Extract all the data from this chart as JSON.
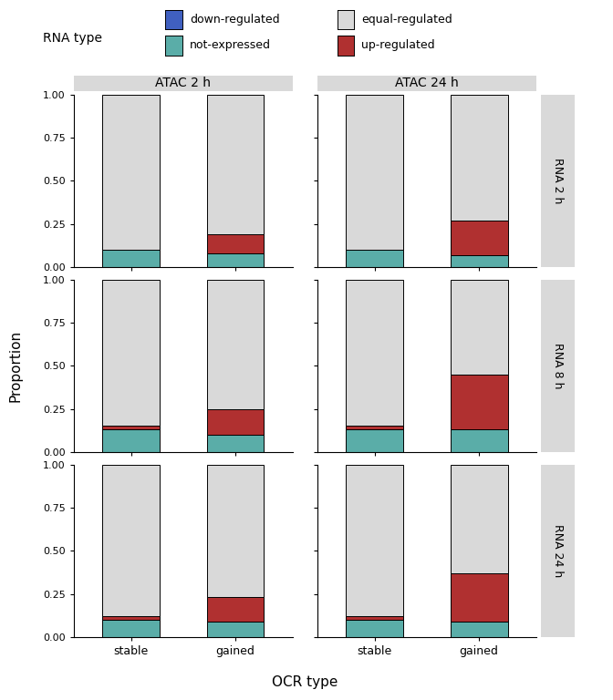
{
  "categories": [
    "stable",
    "gained"
  ],
  "col_labels": [
    "ATAC 2 h",
    "ATAC 24 h"
  ],
  "row_labels": [
    "RNA 2 h",
    "RNA 8 h",
    "RNA 24 h"
  ],
  "colors": {
    "not_expressed": "#5aada8",
    "up_regulated": "#b03030",
    "equal_regulated": "#d9d9d9",
    "down_regulated": "#4060c0"
  },
  "data": {
    "ATAC 2 h": {
      "RNA 2 h": {
        "stable": {
          "not_expressed": 0.1,
          "up_regulated": 0.0,
          "equal_regulated": 0.9,
          "down_regulated": 0.0
        },
        "gained": {
          "not_expressed": 0.08,
          "up_regulated": 0.11,
          "equal_regulated": 0.81,
          "down_regulated": 0.0
        }
      },
      "RNA 8 h": {
        "stable": {
          "not_expressed": 0.13,
          "up_regulated": 0.02,
          "equal_regulated": 0.85,
          "down_regulated": 0.0
        },
        "gained": {
          "not_expressed": 0.1,
          "up_regulated": 0.15,
          "equal_regulated": 0.75,
          "down_regulated": 0.0
        }
      },
      "RNA 24 h": {
        "stable": {
          "not_expressed": 0.1,
          "up_regulated": 0.02,
          "equal_regulated": 0.88,
          "down_regulated": 0.0
        },
        "gained": {
          "not_expressed": 0.09,
          "up_regulated": 0.14,
          "equal_regulated": 0.77,
          "down_regulated": 0.0
        }
      }
    },
    "ATAC 24 h": {
      "RNA 2 h": {
        "stable": {
          "not_expressed": 0.1,
          "up_regulated": 0.0,
          "equal_regulated": 0.9,
          "down_regulated": 0.0
        },
        "gained": {
          "not_expressed": 0.07,
          "up_regulated": 0.2,
          "equal_regulated": 0.73,
          "down_regulated": 0.0
        }
      },
      "RNA 8 h": {
        "stable": {
          "not_expressed": 0.13,
          "up_regulated": 0.02,
          "equal_regulated": 0.85,
          "down_regulated": 0.0
        },
        "gained": {
          "not_expressed": 0.13,
          "up_regulated": 0.32,
          "equal_regulated": 0.55,
          "down_regulated": 0.0
        }
      },
      "RNA 24 h": {
        "stable": {
          "not_expressed": 0.1,
          "up_regulated": 0.02,
          "equal_regulated": 0.88,
          "down_regulated": 0.0
        },
        "gained": {
          "not_expressed": 0.09,
          "up_regulated": 0.28,
          "equal_regulated": 0.63,
          "down_regulated": 0.0
        }
      }
    }
  },
  "stack_order": [
    "not_expressed",
    "up_regulated",
    "equal_regulated",
    "down_regulated"
  ],
  "legend_items": [
    {
      "label": "down-regulated",
      "color": "#4060c0"
    },
    {
      "label": "equal-regulated",
      "color": "#d9d9d9"
    },
    {
      "label": "not-expressed",
      "color": "#5aada8"
    },
    {
      "label": "up-regulated",
      "color": "#b03030"
    }
  ],
  "ylabel": "Proportion",
  "xlabel": "OCR type",
  "background_color": "#ffffff",
  "strip_bg": "#d9d9d9",
  "bar_edge_color": "#000000",
  "bar_width": 0.55,
  "yticks": [
    0.0,
    0.25,
    0.5,
    0.75,
    1.0
  ],
  "ytick_labels": [
    "0.00",
    "0.25",
    "0.50",
    "0.75",
    "1.00"
  ]
}
